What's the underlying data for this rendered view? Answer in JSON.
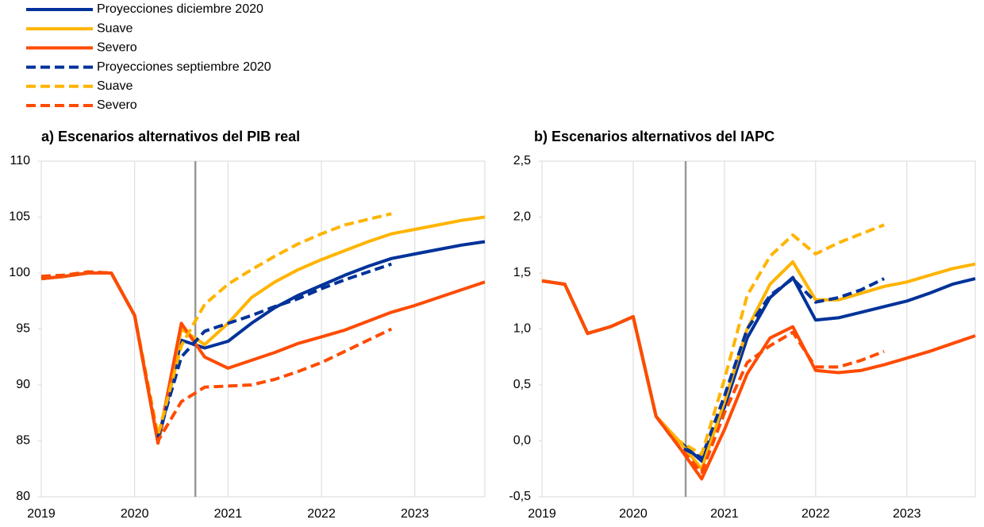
{
  "chart_data": [
    {
      "type": "line",
      "title": "a) Escenarios alternativos del PIB real",
      "legend": true,
      "categories": [
        "2019",
        null,
        null,
        null,
        "2020",
        null,
        null,
        null,
        "2021",
        null,
        null,
        null,
        "2022",
        null,
        null,
        null,
        "2023",
        null,
        null,
        null
      ],
      "ylim": [
        80,
        110
      ],
      "yticks": [
        80,
        85,
        90,
        95,
        100,
        105,
        110
      ],
      "grid": true,
      "vertical_line": 6.6,
      "series": [
        {
          "name": "Proyecciones diciembre 2020",
          "color": "#003299",
          "dashed": false,
          "values": [
            99.5,
            99.7,
            100.0,
            100.0,
            96.2,
            84.8,
            94.0,
            93.3,
            93.9,
            95.5,
            96.9,
            98.0,
            98.9,
            99.8,
            100.6,
            101.3,
            101.7,
            102.1,
            102.5,
            102.8
          ]
        },
        {
          "name": "Suave",
          "color": "#ffb400",
          "dashed": false,
          "values": [
            99.5,
            99.7,
            100.0,
            100.0,
            96.2,
            84.8,
            95.0,
            93.6,
            95.5,
            97.8,
            99.2,
            100.3,
            101.2,
            102.0,
            102.8,
            103.5,
            103.9,
            104.3,
            104.7,
            105.0
          ]
        },
        {
          "name": "Severo",
          "color": "#ff4b00",
          "dashed": false,
          "values": [
            99.5,
            99.7,
            100.0,
            100.0,
            96.2,
            84.8,
            95.5,
            92.5,
            91.5,
            92.2,
            92.9,
            93.7,
            94.3,
            94.9,
            95.7,
            96.5,
            97.1,
            97.8,
            98.5,
            99.2
          ]
        },
        {
          "name": "Proyecciones septiembre 2020",
          "color": "#003299",
          "dashed": true,
          "values": [
            99.7,
            99.8,
            100.1,
            100.0,
            96.2,
            85.3,
            92.5,
            94.8,
            95.5,
            96.2,
            97.0,
            97.7,
            98.6,
            99.4,
            100.1,
            100.8,
            null,
            null,
            null,
            null
          ]
        },
        {
          "name": "Suave",
          "color": "#ffb400",
          "dashed": true,
          "values": [
            99.7,
            99.8,
            100.1,
            100.0,
            96.2,
            85.5,
            93.5,
            97.2,
            99.0,
            100.3,
            101.5,
            102.6,
            103.5,
            104.3,
            104.8,
            105.3,
            null,
            null,
            null,
            null
          ]
        },
        {
          "name": "Severo",
          "color": "#ff4b00",
          "dashed": true,
          "values": [
            99.7,
            99.8,
            100.1,
            100.0,
            96.2,
            85.0,
            88.5,
            89.8,
            89.9,
            90.0,
            90.5,
            91.2,
            92.0,
            93.0,
            94.0,
            95.0,
            null,
            null,
            null,
            null
          ]
        }
      ]
    },
    {
      "type": "line",
      "title": "b) Escenarios alternativos del IAPC",
      "legend": false,
      "categories": [
        "2019",
        null,
        null,
        null,
        "2020",
        null,
        null,
        null,
        "2021",
        null,
        null,
        null,
        "2022",
        null,
        null,
        null,
        "2023",
        null,
        null,
        null
      ],
      "ylim": [
        -0.5,
        2.5
      ],
      "yticks": [
        {
          "value": -0.5,
          "label": "-0,5"
        },
        {
          "value": 0,
          "label": "0,0"
        },
        {
          "value": 0.5,
          "label": "0,5"
        },
        {
          "value": 1,
          "label": "1,0"
        },
        {
          "value": 1.5,
          "label": "1,5"
        },
        {
          "value": 2,
          "label": "2,0"
        },
        {
          "value": 2.5,
          "label": "2,5"
        }
      ],
      "grid": true,
      "vertical_line": 6.3,
      "series": [
        {
          "color": "#003299",
          "dashed": false,
          "values": [
            1.43,
            1.4,
            0.96,
            1.02,
            1.11,
            0.22,
            0.0,
            -0.18,
            0.3,
            0.92,
            1.28,
            1.46,
            1.08,
            1.1,
            1.15,
            1.2,
            1.25,
            1.32,
            1.4,
            1.45
          ]
        },
        {
          "color": "#ffb400",
          "dashed": false,
          "values": [
            1.43,
            1.4,
            0.96,
            1.02,
            1.11,
            0.22,
            0.0,
            -0.25,
            0.35,
            1.0,
            1.4,
            1.6,
            1.26,
            1.26,
            1.32,
            1.38,
            1.42,
            1.48,
            1.54,
            1.58
          ]
        },
        {
          "color": "#ff4b00",
          "dashed": false,
          "values": [
            1.43,
            1.4,
            0.96,
            1.02,
            1.11,
            0.22,
            -0.05,
            -0.34,
            0.1,
            0.6,
            0.92,
            1.02,
            0.63,
            0.61,
            0.63,
            0.68,
            0.74,
            0.8,
            0.87,
            0.94
          ]
        },
        {
          "color": "#003299",
          "dashed": true,
          "values": [
            1.43,
            1.4,
            0.96,
            1.02,
            1.11,
            0.22,
            -0.05,
            -0.15,
            0.4,
            1.0,
            1.3,
            1.45,
            1.24,
            1.28,
            1.35,
            1.45,
            null,
            null,
            null,
            null
          ]
        },
        {
          "color": "#ffb400",
          "dashed": true,
          "values": [
            1.43,
            1.4,
            0.96,
            1.02,
            1.11,
            0.22,
            0.0,
            -0.12,
            0.55,
            1.3,
            1.65,
            1.84,
            1.67,
            1.77,
            1.85,
            1.93,
            null,
            null,
            null,
            null
          ]
        },
        {
          "color": "#ff4b00",
          "dashed": true,
          "values": [
            1.43,
            1.4,
            0.96,
            1.02,
            1.11,
            0.22,
            -0.05,
            -0.28,
            0.25,
            0.7,
            0.85,
            0.97,
            0.66,
            0.66,
            0.72,
            0.8,
            null,
            null,
            null,
            null
          ]
        }
      ]
    }
  ]
}
